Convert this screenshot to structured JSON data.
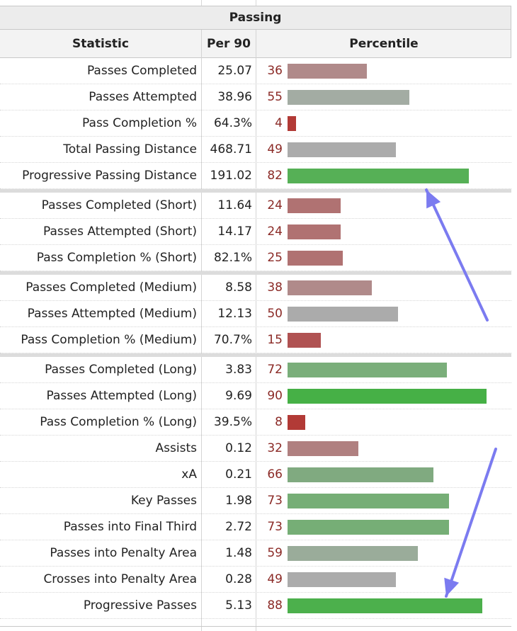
{
  "section_title": "Passing",
  "columns": {
    "stat": "Statistic",
    "per90": "Per 90",
    "percentile": "Percentile"
  },
  "rows": [
    {
      "stat": "Passes Completed",
      "per90": "25.07",
      "pct": "36",
      "pct_value": 36,
      "color": "#b08a8a"
    },
    {
      "stat": "Passes Attempted",
      "per90": "38.96",
      "pct": "55",
      "pct_value": 55,
      "color": "#a3aca3"
    },
    {
      "stat": "Pass Completion %",
      "per90": "64.3%",
      "pct": "4",
      "pct_value": 4,
      "color": "#b23a36"
    },
    {
      "stat": "Total Passing Distance",
      "per90": "468.71",
      "pct": "49",
      "pct_value": 49,
      "color": "#ababab"
    },
    {
      "stat": "Progressive Passing Distance",
      "per90": "191.02",
      "pct": "82",
      "pct_value": 82,
      "color": "#56b056"
    },
    {
      "stat": "Passes Completed (Short)",
      "per90": "11.64",
      "pct": "24",
      "pct_value": 24,
      "color": "#b07272"
    },
    {
      "stat": "Passes Attempted (Short)",
      "per90": "14.17",
      "pct": "24",
      "pct_value": 24,
      "color": "#b07272"
    },
    {
      "stat": "Pass Completion % (Short)",
      "per90": "82.1%",
      "pct": "25",
      "pct_value": 25,
      "color": "#b07272"
    },
    {
      "stat": "Passes Completed (Medium)",
      "per90": "8.58",
      "pct": "38",
      "pct_value": 38,
      "color": "#b08a8a"
    },
    {
      "stat": "Passes Attempted (Medium)",
      "per90": "12.13",
      "pct": "50",
      "pct_value": 50,
      "color": "#ababab"
    },
    {
      "stat": "Pass Completion % (Medium)",
      "per90": "70.7%",
      "pct": "15",
      "pct_value": 15,
      "color": "#b05252"
    },
    {
      "stat": "Passes Completed (Long)",
      "per90": "3.83",
      "pct": "72",
      "pct_value": 72,
      "color": "#7aae7a"
    },
    {
      "stat": "Passes Attempted (Long)",
      "per90": "9.69",
      "pct": "90",
      "pct_value": 90,
      "color": "#46b046"
    },
    {
      "stat": "Pass Completion % (Long)",
      "per90": "39.5%",
      "pct": "8",
      "pct_value": 8,
      "color": "#b23a36"
    },
    {
      "stat": "Assists",
      "per90": "0.12",
      "pct": "32",
      "pct_value": 32,
      "color": "#b08080"
    },
    {
      "stat": "xA",
      "per90": "0.21",
      "pct": "66",
      "pct_value": 66,
      "color": "#80aa80"
    },
    {
      "stat": "Key Passes",
      "per90": "1.98",
      "pct": "73",
      "pct_value": 73,
      "color": "#76ae76"
    },
    {
      "stat": "Passes into Final Third",
      "per90": "2.72",
      "pct": "73",
      "pct_value": 73,
      "color": "#76ae76"
    },
    {
      "stat": "Passes into Penalty Area",
      "per90": "1.48",
      "pct": "59",
      "pct_value": 59,
      "color": "#9aac9a"
    },
    {
      "stat": "Crosses into Penalty Area",
      "per90": "0.28",
      "pct": "49",
      "pct_value": 49,
      "color": "#ababab"
    },
    {
      "stat": "Progressive Passes",
      "per90": "5.13",
      "pct": "88",
      "pct_value": 88,
      "color": "#4cb04c"
    }
  ],
  "pct_text_color": "#8b2a26",
  "annotation_arrow_color": "#7b7bf0"
}
